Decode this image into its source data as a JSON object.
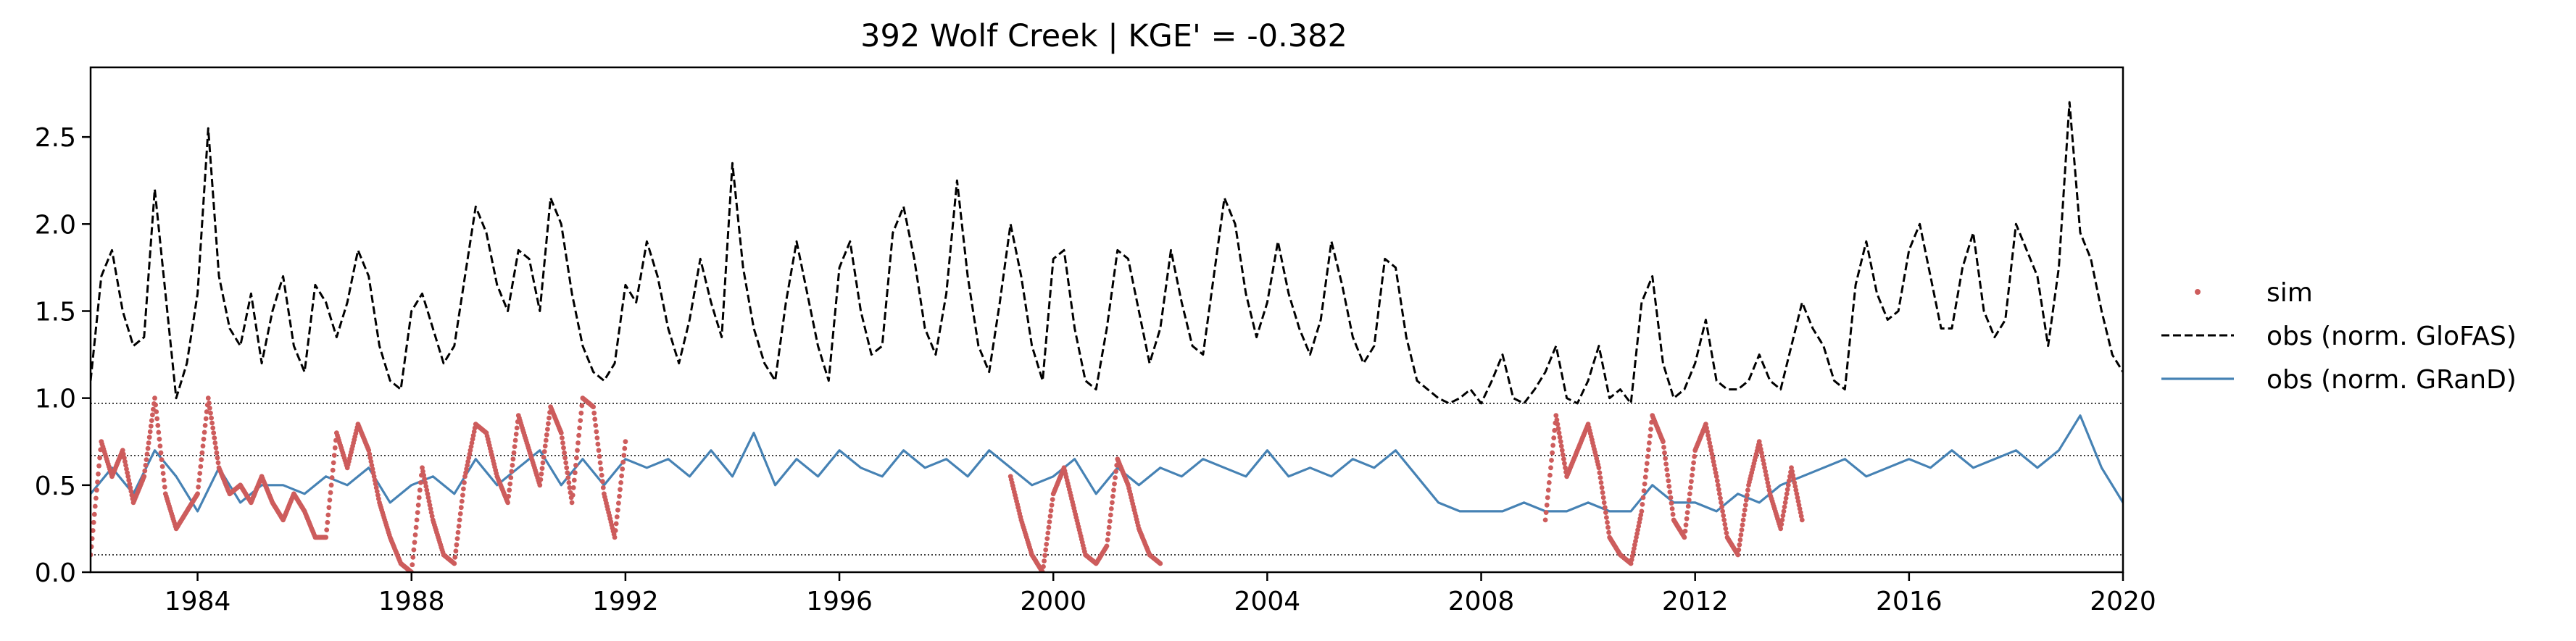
{
  "chart_data": {
    "type": "line",
    "title": "392  Wolf Creek | KGE' = -0.382",
    "xlabel": "",
    "ylabel": "",
    "xlim": [
      1982.0,
      2020.0
    ],
    "ylim": [
      0.0,
      2.9
    ],
    "x_ticks": [
      1984,
      1988,
      1992,
      1996,
      2000,
      2004,
      2008,
      2012,
      2016,
      2020
    ],
    "x_tick_labels": [
      "1984",
      "1988",
      "1992",
      "1996",
      "2000",
      "2004",
      "2008",
      "2012",
      "2016",
      "2020"
    ],
    "y_ticks": [
      0.0,
      0.5,
      1.0,
      1.5,
      2.0,
      2.5
    ],
    "y_tick_labels": [
      "0.0",
      "0.5",
      "1.0",
      "1.5",
      "2.0",
      "2.5"
    ],
    "reference_lines": [
      0.1,
      0.67,
      0.97
    ],
    "grid": false,
    "legend_position": "right",
    "series": [
      {
        "name": "sim",
        "style": "dots",
        "color": "#cd5c5c",
        "segments": [
          {
            "x": [
              1982.0,
              1982.2,
              1982.4,
              1982.6,
              1982.8,
              1983.0,
              1983.2,
              1983.4,
              1983.6,
              1983.8,
              1984.0,
              1984.2,
              1984.4,
              1984.6,
              1984.8,
              1985.0,
              1985.2,
              1985.4,
              1985.6,
              1985.8,
              1986.0,
              1986.2,
              1986.4,
              1986.6,
              1986.8,
              1987.0,
              1987.2,
              1987.4,
              1987.6,
              1987.8,
              1988.0,
              1988.2,
              1988.4,
              1988.6,
              1988.8,
              1989.0,
              1989.2,
              1989.4,
              1989.6,
              1989.8,
              1990.0,
              1990.2,
              1990.4,
              1990.6,
              1990.8,
              1991.0,
              1991.2,
              1991.4,
              1991.6,
              1991.8,
              1992.0
            ],
            "y": [
              0.1,
              0.75,
              0.55,
              0.7,
              0.4,
              0.55,
              1.0,
              0.45,
              0.25,
              0.35,
              0.45,
              1.0,
              0.6,
              0.45,
              0.5,
              0.4,
              0.55,
              0.4,
              0.3,
              0.45,
              0.35,
              0.2,
              0.2,
              0.8,
              0.6,
              0.85,
              0.7,
              0.4,
              0.2,
              0.05,
              0.0,
              0.6,
              0.3,
              0.1,
              0.05,
              0.55,
              0.85,
              0.8,
              0.55,
              0.4,
              0.9,
              0.7,
              0.5,
              0.95,
              0.8,
              0.4,
              1.0,
              0.95,
              0.45,
              0.2,
              0.75
            ]
          },
          {
            "x": [
              1999.2,
              1999.4,
              1999.6,
              1999.8,
              2000.0,
              2000.2,
              2000.4,
              2000.6,
              2000.8,
              2001.0,
              2001.2,
              2001.4,
              2001.6,
              2001.8,
              2002.0
            ],
            "y": [
              0.55,
              0.3,
              0.1,
              0.0,
              0.45,
              0.6,
              0.35,
              0.1,
              0.05,
              0.15,
              0.65,
              0.5,
              0.25,
              0.1,
              0.05
            ]
          },
          {
            "x": [
              2009.2,
              2009.4,
              2009.6,
              2009.8,
              2010.0,
              2010.2,
              2010.4,
              2010.6,
              2010.8,
              2011.0,
              2011.2,
              2011.4,
              2011.6,
              2011.8,
              2012.0,
              2012.2,
              2012.4,
              2012.6,
              2012.8,
              2013.0,
              2013.2,
              2013.4,
              2013.6,
              2013.8,
              2014.0
            ],
            "y": [
              0.3,
              0.9,
              0.55,
              0.7,
              0.85,
              0.6,
              0.2,
              0.1,
              0.05,
              0.35,
              0.9,
              0.75,
              0.3,
              0.2,
              0.7,
              0.85,
              0.55,
              0.2,
              0.1,
              0.5,
              0.75,
              0.45,
              0.25,
              0.6,
              0.3
            ]
          }
        ]
      },
      {
        "name": "obs (norm. GloFAS)",
        "style": "dashed",
        "color": "#000000",
        "x": [
          1982.0,
          1982.2,
          1982.4,
          1982.6,
          1982.8,
          1983.0,
          1983.2,
          1983.4,
          1983.6,
          1983.8,
          1984.0,
          1984.2,
          1984.4,
          1984.6,
          1984.8,
          1985.0,
          1985.2,
          1985.4,
          1985.6,
          1985.8,
          1986.0,
          1986.2,
          1986.4,
          1986.6,
          1986.8,
          1987.0,
          1987.2,
          1987.4,
          1987.6,
          1987.8,
          1988.0,
          1988.2,
          1988.4,
          1988.6,
          1988.8,
          1989.0,
          1989.2,
          1989.4,
          1989.6,
          1989.8,
          1990.0,
          1990.2,
          1990.4,
          1990.6,
          1990.8,
          1991.0,
          1991.2,
          1991.4,
          1991.6,
          1991.8,
          1992.0,
          1992.2,
          1992.4,
          1992.6,
          1992.8,
          1993.0,
          1993.2,
          1993.4,
          1993.6,
          1993.8,
          1994.0,
          1994.2,
          1994.4,
          1994.6,
          1994.8,
          1995.0,
          1995.2,
          1995.4,
          1995.6,
          1995.8,
          1996.0,
          1996.2,
          1996.4,
          1996.6,
          1996.8,
          1997.0,
          1997.2,
          1997.4,
          1997.6,
          1997.8,
          1998.0,
          1998.2,
          1998.4,
          1998.6,
          1998.8,
          1999.0,
          1999.2,
          1999.4,
          1999.6,
          1999.8,
          2000.0,
          2000.2,
          2000.4,
          2000.6,
          2000.8,
          2001.0,
          2001.2,
          2001.4,
          2001.6,
          2001.8,
          2002.0,
          2002.2,
          2002.4,
          2002.6,
          2002.8,
          2003.0,
          2003.2,
          2003.4,
          2003.6,
          2003.8,
          2004.0,
          2004.2,
          2004.4,
          2004.6,
          2004.8,
          2005.0,
          2005.2,
          2005.4,
          2005.6,
          2005.8,
          2006.0,
          2006.2,
          2006.4,
          2006.6,
          2006.8,
          2007.0,
          2007.2,
          2007.4,
          2007.6,
          2007.8,
          2008.0,
          2008.2,
          2008.4,
          2008.6,
          2008.8,
          2009.0,
          2009.2,
          2009.4,
          2009.6,
          2009.8,
          2010.0,
          2010.2,
          2010.4,
          2010.6,
          2010.8,
          2011.0,
          2011.2,
          2011.4,
          2011.6,
          2011.8,
          2012.0,
          2012.2,
          2012.4,
          2012.6,
          2012.8,
          2013.0,
          2013.2,
          2013.4,
          2013.6,
          2013.8,
          2014.0,
          2014.2,
          2014.4,
          2014.6,
          2014.8,
          2015.0,
          2015.2,
          2015.4,
          2015.6,
          2015.8,
          2016.0,
          2016.2,
          2016.4,
          2016.6,
          2016.8,
          2017.0,
          2017.2,
          2017.4,
          2017.6,
          2017.8,
          2018.0,
          2018.2,
          2018.4,
          2018.6,
          2018.8,
          2019.0,
          2019.2,
          2019.4,
          2019.6,
          2019.8,
          2020.0
        ],
        "y": [
          1.1,
          1.7,
          1.85,
          1.5,
          1.3,
          1.35,
          2.2,
          1.6,
          1.0,
          1.2,
          1.6,
          2.55,
          1.7,
          1.4,
          1.3,
          1.6,
          1.2,
          1.5,
          1.7,
          1.3,
          1.15,
          1.65,
          1.55,
          1.35,
          1.55,
          1.85,
          1.7,
          1.3,
          1.1,
          1.05,
          1.5,
          1.6,
          1.4,
          1.2,
          1.3,
          1.7,
          2.1,
          1.95,
          1.65,
          1.5,
          1.85,
          1.8,
          1.5,
          2.15,
          2.0,
          1.6,
          1.3,
          1.15,
          1.1,
          1.2,
          1.65,
          1.55,
          1.9,
          1.7,
          1.4,
          1.2,
          1.45,
          1.8,
          1.55,
          1.35,
          2.35,
          1.75,
          1.4,
          1.2,
          1.1,
          1.55,
          1.9,
          1.6,
          1.3,
          1.1,
          1.75,
          1.9,
          1.5,
          1.25,
          1.3,
          1.95,
          2.1,
          1.8,
          1.4,
          1.25,
          1.6,
          2.25,
          1.7,
          1.3,
          1.15,
          1.55,
          2.0,
          1.7,
          1.3,
          1.1,
          1.8,
          1.85,
          1.4,
          1.1,
          1.05,
          1.4,
          1.85,
          1.8,
          1.5,
          1.2,
          1.4,
          1.85,
          1.55,
          1.3,
          1.25,
          1.7,
          2.15,
          2.0,
          1.6,
          1.35,
          1.55,
          1.9,
          1.6,
          1.4,
          1.25,
          1.45,
          1.9,
          1.65,
          1.35,
          1.2,
          1.3,
          1.8,
          1.75,
          1.35,
          1.1,
          1.05,
          1.0,
          0.97,
          1.0,
          1.05,
          0.97,
          1.1,
          1.25,
          1.0,
          0.97,
          1.05,
          1.15,
          1.3,
          1.0,
          0.97,
          1.1,
          1.3,
          1.0,
          1.05,
          0.97,
          1.55,
          1.7,
          1.2,
          1.0,
          1.05,
          1.2,
          1.45,
          1.1,
          1.05,
          1.05,
          1.1,
          1.25,
          1.1,
          1.05,
          1.3,
          1.55,
          1.4,
          1.3,
          1.1,
          1.05,
          1.65,
          1.9,
          1.6,
          1.45,
          1.5,
          1.85,
          2.0,
          1.7,
          1.4,
          1.4,
          1.75,
          1.95,
          1.5,
          1.35,
          1.45,
          2.0,
          1.85,
          1.7,
          1.3,
          1.75,
          2.7,
          1.95,
          1.8,
          1.5,
          1.25,
          1.15
        ]
      },
      {
        "name": "obs (norm. GRanD)",
        "style": "solid",
        "color": "#4682b4",
        "x": [
          1982.0,
          1982.4,
          1982.8,
          1983.2,
          1983.6,
          1984.0,
          1984.4,
          1984.8,
          1985.2,
          1985.6,
          1986.0,
          1986.4,
          1986.8,
          1987.2,
          1987.6,
          1988.0,
          1988.4,
          1988.8,
          1989.2,
          1989.6,
          1990.0,
          1990.4,
          1990.8,
          1991.2,
          1991.6,
          1992.0,
          1992.4,
          1992.8,
          1993.2,
          1993.6,
          1994.0,
          1994.4,
          1994.8,
          1995.2,
          1995.6,
          1996.0,
          1996.4,
          1996.8,
          1997.2,
          1997.6,
          1998.0,
          1998.4,
          1998.8,
          1999.2,
          1999.6,
          2000.0,
          2000.4,
          2000.8,
          2001.2,
          2001.6,
          2002.0,
          2002.4,
          2002.8,
          2003.2,
          2003.6,
          2004.0,
          2004.4,
          2004.8,
          2005.2,
          2005.6,
          2006.0,
          2006.4,
          2006.8,
          2007.2,
          2007.6,
          2008.0,
          2008.4,
          2008.8,
          2009.2,
          2009.6,
          2010.0,
          2010.4,
          2010.8,
          2011.2,
          2011.6,
          2012.0,
          2012.4,
          2012.8,
          2013.2,
          2013.6,
          2014.0,
          2014.4,
          2014.8,
          2015.2,
          2015.6,
          2016.0,
          2016.4,
          2016.8,
          2017.2,
          2017.6,
          2018.0,
          2018.4,
          2018.8,
          2019.2,
          2019.6,
          2020.0
        ],
        "y": [
          0.45,
          0.6,
          0.45,
          0.7,
          0.55,
          0.35,
          0.6,
          0.4,
          0.5,
          0.5,
          0.45,
          0.55,
          0.5,
          0.6,
          0.4,
          0.5,
          0.55,
          0.45,
          0.65,
          0.5,
          0.6,
          0.7,
          0.5,
          0.65,
          0.5,
          0.65,
          0.6,
          0.65,
          0.55,
          0.7,
          0.55,
          0.8,
          0.5,
          0.65,
          0.55,
          0.7,
          0.6,
          0.55,
          0.7,
          0.6,
          0.65,
          0.55,
          0.7,
          0.6,
          0.5,
          0.55,
          0.65,
          0.45,
          0.6,
          0.5,
          0.6,
          0.55,
          0.65,
          0.6,
          0.55,
          0.7,
          0.55,
          0.6,
          0.55,
          0.65,
          0.6,
          0.7,
          0.55,
          0.4,
          0.35,
          0.35,
          0.35,
          0.4,
          0.35,
          0.35,
          0.4,
          0.35,
          0.35,
          0.5,
          0.4,
          0.4,
          0.35,
          0.45,
          0.4,
          0.5,
          0.55,
          0.6,
          0.65,
          0.55,
          0.6,
          0.65,
          0.6,
          0.7,
          0.6,
          0.65,
          0.7,
          0.6,
          0.7,
          0.9,
          0.6,
          0.4
        ]
      }
    ]
  }
}
